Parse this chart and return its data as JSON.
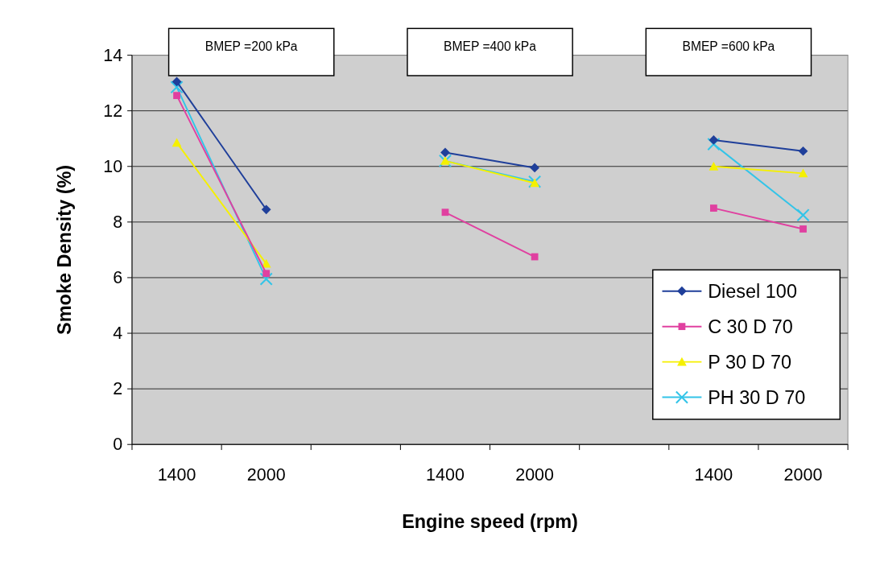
{
  "chart_data": {
    "type": "line",
    "xlabel": "Engine speed (rpm)",
    "ylabel": "Smoke Density (%)",
    "categories": [
      "1400",
      "2000",
      null,
      "1400",
      "2000",
      null,
      "1400",
      "2000"
    ],
    "series": [
      {
        "name": "Diesel 100",
        "color": "#1f3f9a",
        "marker": "diamond",
        "values": [
          13.05,
          8.45,
          null,
          10.5,
          9.95,
          null,
          10.95,
          10.55
        ]
      },
      {
        "name": "C 30 D 70",
        "color": "#e040a0",
        "marker": "square",
        "values": [
          12.55,
          6.15,
          null,
          8.35,
          6.75,
          null,
          8.5,
          7.75
        ]
      },
      {
        "name": "P 30 D 70",
        "color": "#f5f000",
        "marker": "triangle",
        "values": [
          10.85,
          6.5,
          null,
          10.2,
          9.4,
          null,
          10.0,
          9.75
        ]
      },
      {
        "name": "PH 30 D 70",
        "color": "#33c4e8",
        "marker": "cross",
        "values": [
          12.85,
          5.95,
          null,
          10.2,
          9.45,
          null,
          10.8,
          8.25
        ]
      }
    ],
    "annotations": [
      "BMEP =200 kPa",
      "BMEP =400 kPa",
      "BMEP =600 kPa"
    ],
    "ylim": [
      0,
      14
    ],
    "yticks": [
      0,
      2,
      4,
      6,
      8,
      10,
      12,
      14
    ],
    "grid": "y",
    "legend": "bottom right"
  }
}
